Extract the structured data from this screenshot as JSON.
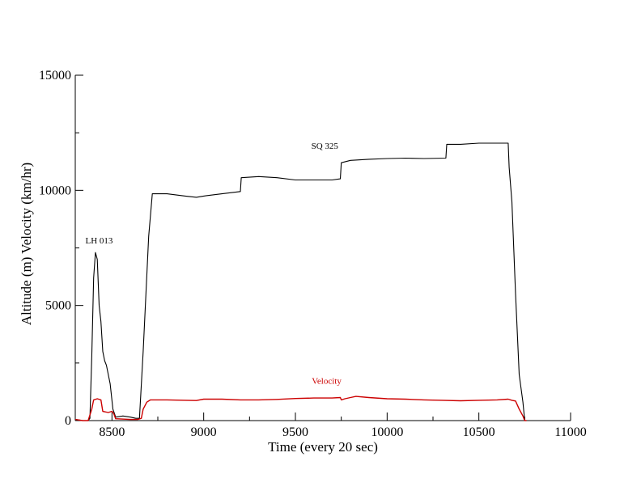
{
  "chart_data": {
    "type": "line",
    "title": "",
    "xlabel": "Time (every 20 sec)",
    "ylabel": "Altitude (m)  Velocity (km/hr)",
    "xlim": [
      8300,
      11000
    ],
    "ylim": [
      0,
      15000
    ],
    "x_ticks": [
      8500,
      9000,
      9500,
      10000,
      10500,
      11000
    ],
    "y_ticks": [
      0,
      5000,
      10000,
      15000
    ],
    "grid": false,
    "legend": "none",
    "annotations": [
      {
        "text": "LH 013",
        "x": 8430,
        "y": 7700,
        "color": "#000000"
      },
      {
        "text": "SQ 325",
        "x": 9660,
        "y": 11800,
        "color": "#000000"
      },
      {
        "text": "Velocity",
        "x": 9670,
        "y": 1600,
        "color": "#cc0000"
      }
    ],
    "series": [
      {
        "color": "#000000",
        "points": [
          [
            8300,
            50
          ],
          [
            8340,
            0
          ],
          [
            8370,
            0
          ],
          [
            8380,
            100
          ],
          [
            8390,
            2800
          ],
          [
            8400,
            6200
          ],
          [
            8410,
            7300
          ],
          [
            8420,
            7000
          ],
          [
            8430,
            5000
          ],
          [
            8440,
            4300
          ],
          [
            8450,
            3000
          ],
          [
            8460,
            2600
          ],
          [
            8470,
            2400
          ],
          [
            8490,
            1600
          ],
          [
            8505,
            500
          ],
          [
            8520,
            150
          ],
          [
            8560,
            200
          ],
          [
            8600,
            150
          ],
          [
            8630,
            100
          ],
          [
            8650,
            100
          ],
          [
            8670,
            3000
          ],
          [
            8700,
            8000
          ],
          [
            8720,
            9850
          ],
          [
            8800,
            9850
          ],
          [
            8900,
            9750
          ],
          [
            8960,
            9700
          ],
          [
            9000,
            9750
          ],
          [
            9100,
            9850
          ],
          [
            9200,
            9950
          ],
          [
            9205,
            10550
          ],
          [
            9300,
            10600
          ],
          [
            9400,
            10550
          ],
          [
            9500,
            10450
          ],
          [
            9600,
            10450
          ],
          [
            9700,
            10450
          ],
          [
            9745,
            10500
          ],
          [
            9750,
            11200
          ],
          [
            9800,
            11300
          ],
          [
            9900,
            11350
          ],
          [
            10000,
            11380
          ],
          [
            10100,
            11400
          ],
          [
            10200,
            11380
          ],
          [
            10320,
            11400
          ],
          [
            10325,
            12000
          ],
          [
            10400,
            12000
          ],
          [
            10500,
            12050
          ],
          [
            10550,
            12050
          ],
          [
            10660,
            12050
          ],
          [
            10665,
            11000
          ],
          [
            10680,
            9500
          ],
          [
            10700,
            5500
          ],
          [
            10720,
            2000
          ],
          [
            10740,
            800
          ],
          [
            10750,
            0
          ],
          [
            10760,
            0
          ]
        ]
      },
      {
        "name": "Velocity",
        "color": "#cc0000",
        "points": [
          [
            8300,
            50
          ],
          [
            8340,
            0
          ],
          [
            8370,
            0
          ],
          [
            8390,
            500
          ],
          [
            8400,
            900
          ],
          [
            8420,
            950
          ],
          [
            8440,
            900
          ],
          [
            8450,
            400
          ],
          [
            8480,
            350
          ],
          [
            8500,
            400
          ],
          [
            8510,
            300
          ],
          [
            8520,
            80
          ],
          [
            8600,
            50
          ],
          [
            8640,
            50
          ],
          [
            8660,
            100
          ],
          [
            8670,
            500
          ],
          [
            8690,
            800
          ],
          [
            8710,
            900
          ],
          [
            8800,
            900
          ],
          [
            8900,
            880
          ],
          [
            8960,
            870
          ],
          [
            9000,
            930
          ],
          [
            9100,
            930
          ],
          [
            9200,
            900
          ],
          [
            9300,
            900
          ],
          [
            9400,
            920
          ],
          [
            9500,
            960
          ],
          [
            9600,
            980
          ],
          [
            9700,
            980
          ],
          [
            9745,
            1000
          ],
          [
            9750,
            900
          ],
          [
            9770,
            950
          ],
          [
            9800,
            1000
          ],
          [
            9830,
            1050
          ],
          [
            9900,
            1000
          ],
          [
            10000,
            950
          ],
          [
            10100,
            930
          ],
          [
            10200,
            900
          ],
          [
            10300,
            880
          ],
          [
            10400,
            860
          ],
          [
            10500,
            880
          ],
          [
            10600,
            900
          ],
          [
            10660,
            930
          ],
          [
            10680,
            880
          ],
          [
            10700,
            850
          ],
          [
            10720,
            500
          ],
          [
            10740,
            200
          ],
          [
            10750,
            0
          ],
          [
            10760,
            0
          ]
        ]
      }
    ]
  }
}
